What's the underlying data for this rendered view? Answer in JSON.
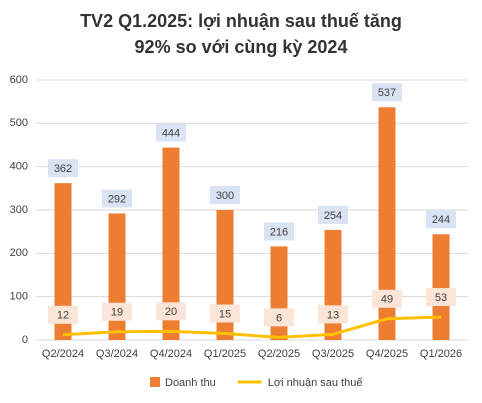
{
  "chart_data": {
    "type": "combo",
    "title": [
      "TV2 Q1.2025: lợi nhuận sau thuế tăng",
      "92% so với cùng kỳ 2024"
    ],
    "categories": [
      "Q2/2024",
      "Q3/2024",
      "Q4/2024",
      "Q1/2025",
      "Q2/2025",
      "Q3/2025",
      "Q4/2025",
      "Q1/2026"
    ],
    "series": [
      {
        "name": "Doanh thu",
        "type": "bar",
        "color": "#ed7d31",
        "values": [
          362,
          292,
          444,
          300,
          216,
          254,
          537,
          244
        ]
      },
      {
        "name": "Lợi nhuận sau thuế",
        "type": "line",
        "color": "#ffc000",
        "values": [
          12,
          19,
          20,
          15,
          6,
          13,
          49,
          53
        ]
      }
    ],
    "ylim": [
      0,
      600
    ],
    "yticks": [
      0,
      100,
      200,
      300,
      400,
      500,
      600
    ],
    "grid": true,
    "legend": "bottom"
  }
}
